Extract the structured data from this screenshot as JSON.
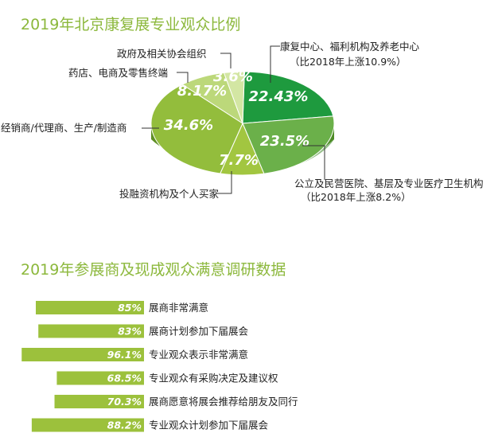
{
  "chart_data": [
    {
      "type": "pie",
      "title": "2019年北京康复展专业观众比例",
      "slices": [
        {
          "label": "康复中心、福利机构及养老中心",
          "note": "（比2018年上涨10.9%）",
          "value": 22.43,
          "value_label": "22.43%",
          "color": "#1e9a3e"
        },
        {
          "label": "公立及民营医院、基层及专业医疗卫生机构",
          "note": "（比2018年上涨8.2%）",
          "value": 23.5,
          "value_label": "23.5%",
          "color": "#6bb04a"
        },
        {
          "label": "投融资机构及个人买家",
          "value": 7.7,
          "value_label": "7.7%",
          "color": "#a2c640"
        },
        {
          "label": "经销商/代理商、生产/制造商",
          "value": 34.6,
          "value_label": "34.6%",
          "color": "#93bd3c"
        },
        {
          "label": "药店、电商及零售终端",
          "value": 8.17,
          "value_label": "8.17%",
          "color": "#bcd87a"
        },
        {
          "label": "政府及相关协会组织",
          "value": 3.6,
          "value_label": "3.6%",
          "color": "#d3e6a3"
        }
      ]
    },
    {
      "type": "bar",
      "title": "2019年参展商及现成观众满意调研数据",
      "xlim": [
        0,
        100
      ],
      "bars": [
        {
          "label": "展商非常满意",
          "value": 85,
          "value_label": "85%"
        },
        {
          "label": "展商计划参加下届展会",
          "value": 83,
          "value_label": "83%"
        },
        {
          "label": "专业观众表示非常满意",
          "value": 96.1,
          "value_label": "96.1%"
        },
        {
          "label": "专业观众有采购决定及建议权",
          "value": 68.5,
          "value_label": "68.5%"
        },
        {
          "label": "展商愿意将展会推荐给朋友及同行",
          "value": 70.3,
          "value_label": "70.3%"
        },
        {
          "label": "专业观众计划参加下届展会",
          "value": 88.2,
          "value_label": "88.2%"
        }
      ],
      "bar_color": "#9cc13c"
    }
  ]
}
